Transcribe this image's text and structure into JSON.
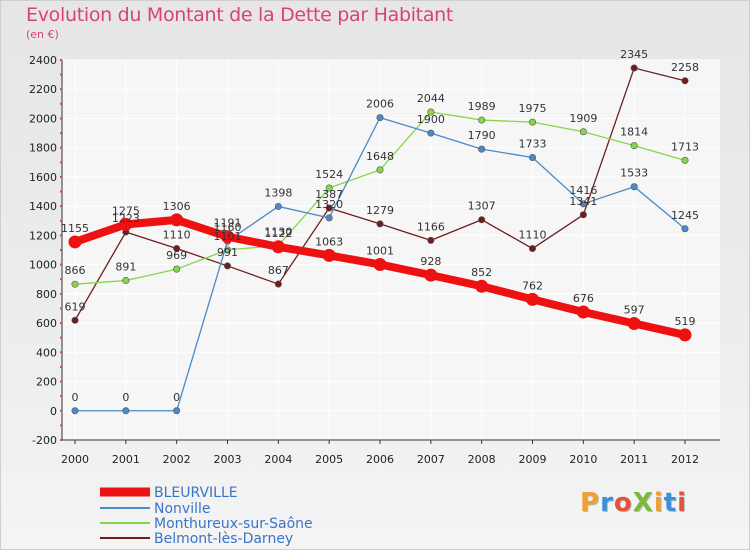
{
  "title": "Evolution du Montant de la Dette par Habitant",
  "subtitle": "(en €)",
  "brand": "ProXiti",
  "brand_colors": [
    "#f0a030",
    "#3a8fd6",
    "#e8503a",
    "#7ab93a",
    "#f0a030",
    "#3a8fd6",
    "#e8503a"
  ],
  "chart_data": {
    "type": "line",
    "title": "Evolution du Montant de la Dette par Habitant",
    "subtitle": "(en €)",
    "xlabel": "",
    "ylabel": "",
    "x": [
      "2000",
      "2001",
      "2002",
      "2003",
      "2004",
      "2005",
      "2006",
      "2007",
      "2008",
      "2009",
      "2010",
      "2011",
      "2012"
    ],
    "ylim": [
      -200,
      2400
    ],
    "yticks": [
      -200,
      0,
      200,
      400,
      600,
      800,
      1000,
      1200,
      1400,
      1600,
      1800,
      2000,
      2200,
      2400
    ],
    "grid": true,
    "legend_position": "bottom-left",
    "series": [
      {
        "name": "BLEURVILLE",
        "color": "#ee1111",
        "values": [
          1155,
          1275,
          1306,
          1191,
          1122,
          1063,
          1001,
          928,
          852,
          762,
          676,
          597,
          519
        ]
      },
      {
        "name": "Nonville",
        "color": "#4a8ac8",
        "values": [
          0,
          0,
          0,
          1160,
          1398,
          1320,
          2006,
          1900,
          1790,
          1733,
          1416,
          1533,
          1245
        ]
      },
      {
        "name": "Monthureux-sur-Saône",
        "color": "#86d64a",
        "values": [
          866,
          891,
          969,
          1101,
          1130,
          1524,
          1648,
          2044,
          1989,
          1975,
          1909,
          1814,
          1713
        ]
      },
      {
        "name": "Belmont-lès-Darney",
        "color": "#6e1e1e",
        "values": [
          619,
          1223,
          1110,
          991,
          867,
          1387,
          1279,
          1166,
          1307,
          1110,
          1341,
          2345,
          2258
        ]
      }
    ]
  }
}
